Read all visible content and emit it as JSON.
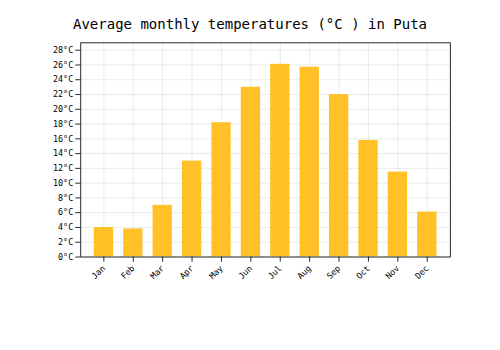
{
  "chart_data": {
    "type": "bar",
    "title": "Average monthly temperatures (°C ) in Puta",
    "categories": [
      "Jan",
      "Feb",
      "Mar",
      "Apr",
      "May",
      "Jun",
      "Jul",
      "Aug",
      "Sep",
      "Oct",
      "Nov",
      "Dec"
    ],
    "values": [
      4.0,
      3.8,
      7.0,
      13.0,
      18.2,
      23.0,
      26.1,
      25.7,
      22.0,
      15.8,
      11.5,
      6.1
    ],
    "color": "#FFC125",
    "ylim": [
      0,
      29
    ],
    "yticks": [
      {
        "value": 0,
        "label": "0°C"
      },
      {
        "value": 2,
        "label": "2°C"
      },
      {
        "value": 4,
        "label": "4°C"
      },
      {
        "value": 6,
        "label": "6°C"
      },
      {
        "value": 8,
        "label": "8°C"
      },
      {
        "value": 10,
        "label": "10°C"
      },
      {
        "value": 12,
        "label": "12°C"
      },
      {
        "value": 14,
        "label": "14°C"
      },
      {
        "value": 16,
        "label": "16°C"
      },
      {
        "value": 18,
        "label": "18°C"
      },
      {
        "value": 20,
        "label": "20°C"
      },
      {
        "value": 22,
        "label": "22°C"
      },
      {
        "value": 24,
        "label": "24°C"
      },
      {
        "value": 26,
        "label": "26°C"
      },
      {
        "value": 28,
        "label": "28°C"
      }
    ],
    "grid": true
  }
}
